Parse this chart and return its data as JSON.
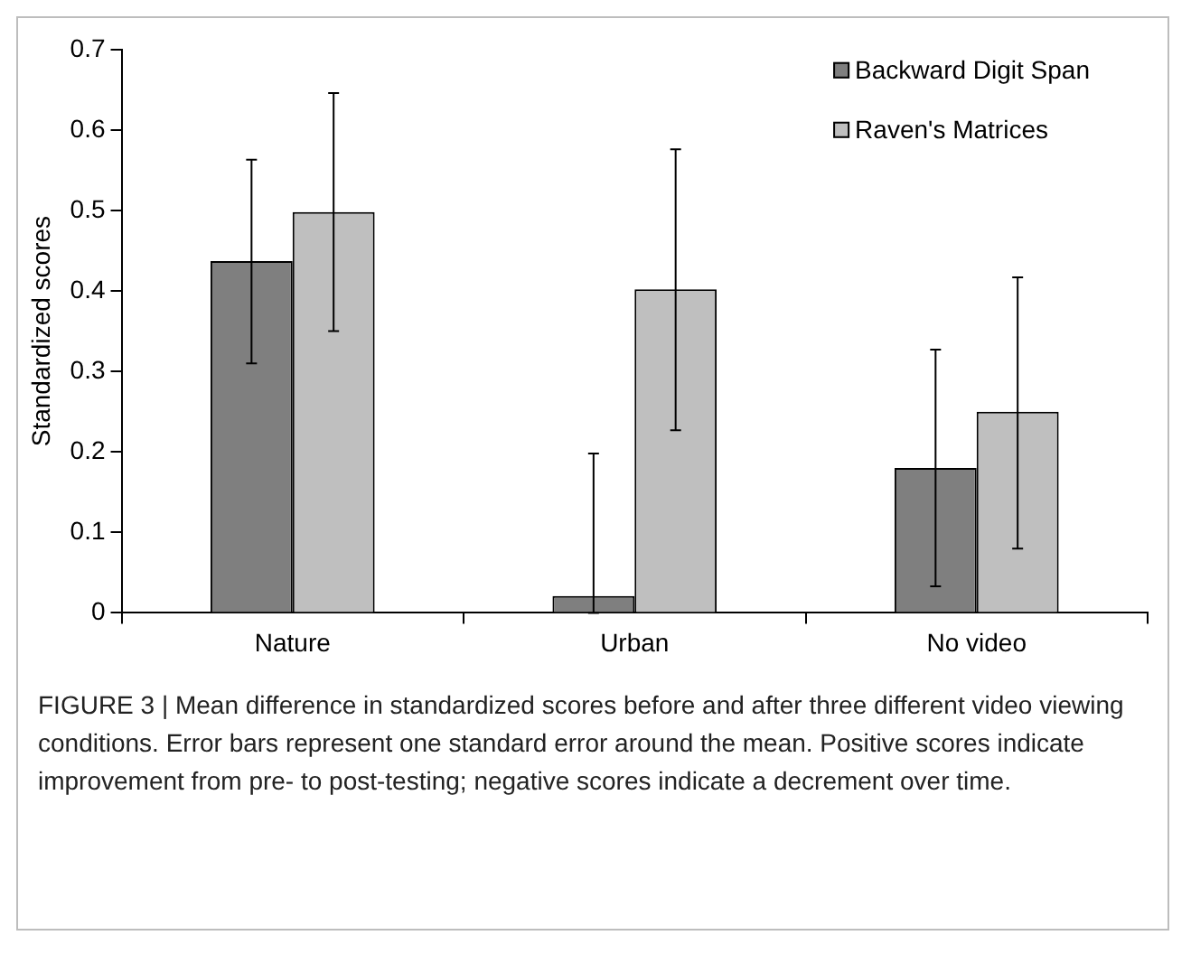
{
  "chart_data": {
    "type": "bar",
    "ylabel": "Standardized scores",
    "categories": [
      "Nature",
      "Urban",
      "No video"
    ],
    "series": [
      {
        "name": "Backward Digit Span",
        "color": "#7f7f7f",
        "values": [
          0.437,
          0.021,
          0.18
        ],
        "errors": [
          [
            0.31,
            0.563
          ],
          [
            0,
            0.198
          ],
          [
            0.033,
            0.327
          ]
        ]
      },
      {
        "name": "Raven's Matrices",
        "color": "#bfbfbf",
        "values": [
          0.498,
          0.402,
          0.25
        ],
        "errors": [
          [
            0.35,
            0.646
          ],
          [
            0.227,
            0.576
          ],
          [
            0.08,
            0.417
          ]
        ]
      }
    ],
    "ylim": [
      0,
      0.7
    ],
    "yticks": [
      0,
      0.1,
      0.2,
      0.3,
      0.4,
      0.5,
      0.6,
      0.7
    ],
    "grid": false,
    "legend": "top right",
    "annotations": [
      "FIGURE 3 | Mean difference in standardized scores before and after three different video viewing conditions. Error bars represent one standard error around the mean. Positive scores indicate improvement from pre- to post-testing; negative scores indicate a decrement over time."
    ]
  }
}
